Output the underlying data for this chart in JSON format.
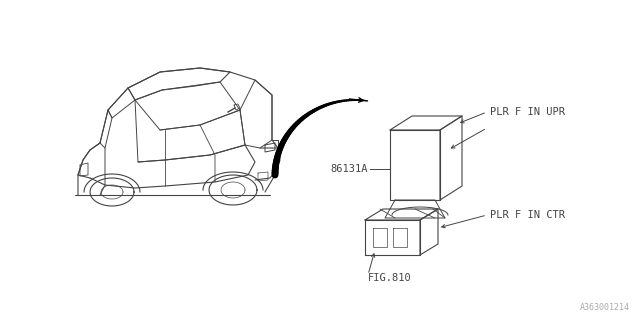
{
  "bg_color": "#ffffff",
  "line_color": "#444444",
  "text_color": "#444444",
  "font_size": 7.5,
  "font_family": "monospace",
  "diagram_id": "A363001214",
  "part_label": "86131A",
  "label_upr": "PLR F IN UPR",
  "label_ctr": "PLR F IN CTR",
  "label_fig": "FIG.810"
}
